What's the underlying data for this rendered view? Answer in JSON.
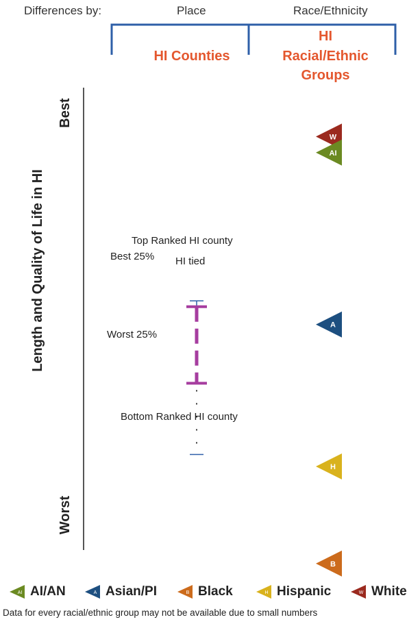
{
  "header": {
    "differences_by": "Differences by:",
    "place": "Place",
    "race_ethnicity": "Race/Ethnicity",
    "hi_counties": "HI Counties",
    "hi_groups_line1": "HI",
    "hi_groups_line2": "Racial/Ethnic",
    "hi_groups_line3": "Groups"
  },
  "axis": {
    "ylabel": "Length and Quality of Life in HI",
    "top": "Best",
    "bottom": "Worst"
  },
  "chart_data": {
    "type": "scatter",
    "title": "",
    "ylabel": "Length and Quality of Life in HI",
    "y_direction": "Best at top, Worst at bottom",
    "place_range": {
      "top_ranked_label": "Top Ranked HI county",
      "best25_label": "Best 25%",
      "hi_tied_label": "HI tied",
      "worst25_label": "Worst 25%",
      "bottom_ranked_label": "Bottom Ranked HI county",
      "top_ranked": 0.555,
      "best25": 0.542,
      "hi_tied": 0.542,
      "worst25": 0.37,
      "bottom_ranked": 0.21
    },
    "groups": [
      {
        "key": "W",
        "name": "White",
        "value": 0.924,
        "color": "#9b2a1f"
      },
      {
        "key": "AI",
        "name": "AI/AN",
        "value": 0.888,
        "color": "#6b8a22"
      },
      {
        "key": "A",
        "name": "Asian/PI",
        "value": 0.502,
        "color": "#1d4f80"
      },
      {
        "key": "H",
        "name": "Hispanic",
        "value": 0.183,
        "color": "#d9b21d"
      },
      {
        "key": "B",
        "name": "Black",
        "value": -0.035,
        "color": "#cc6b1c"
      }
    ],
    "range_color": "#a63d9f",
    "axis_color": "#555555",
    "header_color": "#2e5fa8",
    "highlight_color": "#e4572e"
  },
  "legend": [
    {
      "key": "AI",
      "label": "AI/AN",
      "color": "#6b8a22"
    },
    {
      "key": "A",
      "label": "Asian/PI",
      "color": "#1d4f80"
    },
    {
      "key": "B",
      "label": "Black",
      "color": "#cc6b1c"
    },
    {
      "key": "H",
      "label": "Hispanic",
      "color": "#d9b21d"
    },
    {
      "key": "W",
      "label": "White",
      "color": "#9b2a1f"
    }
  ],
  "footnote": "Data for every racial/ethnic group may not be available due to small numbers"
}
